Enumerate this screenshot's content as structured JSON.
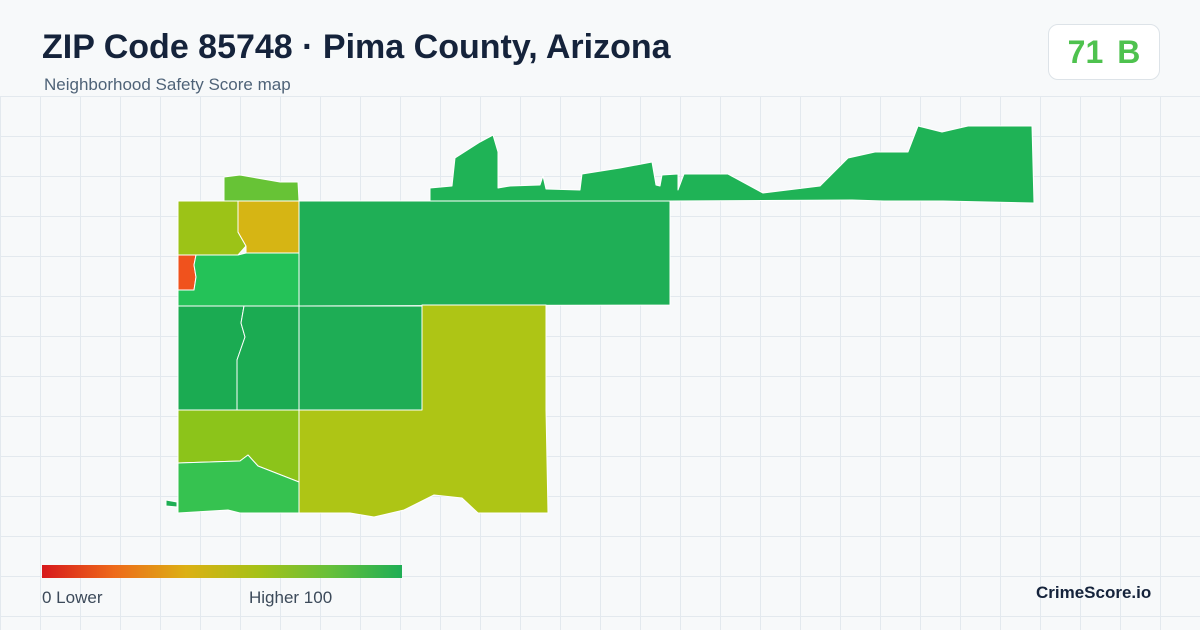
{
  "header": {
    "title": "ZIP Code 85748 · Pima County, Arizona",
    "subtitle": "Neighborhood Safety Score map"
  },
  "score": {
    "value": "71",
    "grade": "B",
    "color": "#4ec24e"
  },
  "legend": {
    "low_label": "0  Lower",
    "high_label": "Higher  100",
    "range": [
      0,
      100
    ],
    "colors": [
      "#d7191c",
      "#ee6a1a",
      "#dcb014",
      "#a6c117",
      "#66c03a",
      "#1fae55"
    ]
  },
  "brand": "CrimeScore.io",
  "map": {
    "areas": [
      {
        "id": "north-strip",
        "color": "#1fb356"
      },
      {
        "id": "small-north",
        "color": "#67c336"
      },
      {
        "id": "nw-yellowgreen",
        "color": "#9cc317"
      },
      {
        "id": "nw-amber",
        "color": "#d6b514"
      },
      {
        "id": "west-red",
        "color": "#f0521d"
      },
      {
        "id": "west-green",
        "color": "#24c258"
      },
      {
        "id": "central-north",
        "color": "#1faf56"
      },
      {
        "id": "w1",
        "color": "#1bab52"
      },
      {
        "id": "w2",
        "color": "#1bab52"
      },
      {
        "id": "center",
        "color": "#1ead55"
      },
      {
        "id": "east-yellow",
        "color": "#aec515"
      },
      {
        "id": "sw-yellowgreen",
        "color": "#8cc41a"
      },
      {
        "id": "sw-green",
        "color": "#36c250"
      },
      {
        "id": "tiny-west",
        "color": "#1fae55"
      }
    ]
  }
}
